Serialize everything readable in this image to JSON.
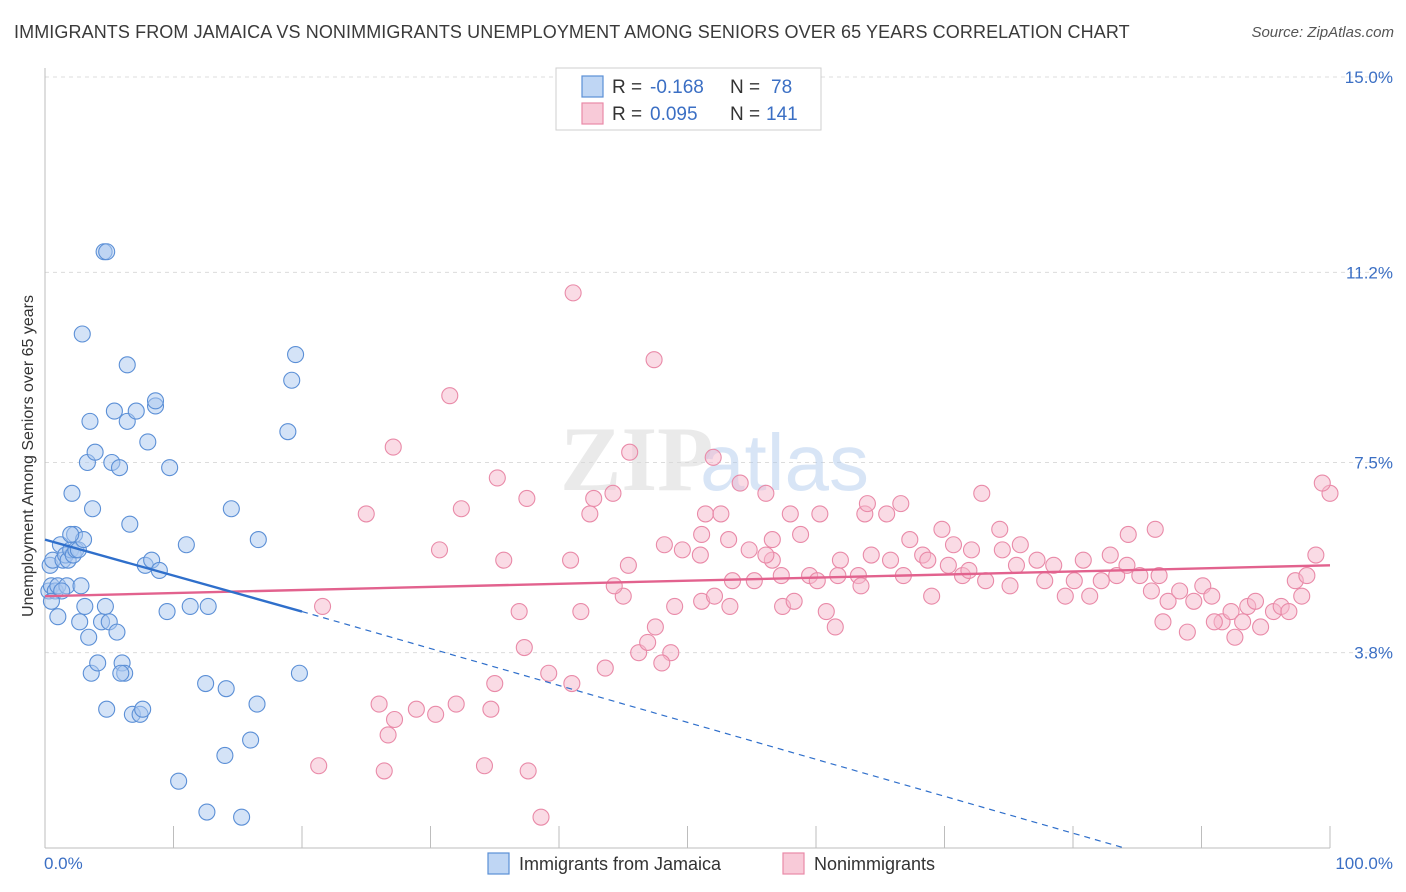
{
  "header": {
    "title": "IMMIGRANTS FROM JAMAICA VS NONIMMIGRANTS UNEMPLOYMENT AMONG SENIORS OVER 65 YEARS CORRELATION CHART",
    "source": "Source: ZipAtlas.com"
  },
  "watermark": {
    "zip": "ZIP",
    "atlas": "atlas"
  },
  "legend": {
    "r_label": "R =",
    "n_label": "N =",
    "rows": [
      {
        "r": "-0.168",
        "n": "78"
      },
      {
        "r": "0.095",
        "n": "141"
      }
    ]
  },
  "bottom_legend": {
    "series1": "Immigrants from Jamaica",
    "series2": "Nonimmigrants"
  },
  "colors": {
    "blue_fill": "#a9c8f0",
    "blue_stroke": "#5b8fd6",
    "blue_line": "#2f6fcb",
    "pink_fill": "#f5b8cb",
    "pink_stroke": "#e98aa8",
    "pink_line": "#e2628e"
  },
  "chart_data": {
    "type": "scatter",
    "title": "IMMIGRANTS FROM JAMAICA VS NONIMMIGRANTS UNEMPLOYMENT AMONG SENIORS OVER 65 YEARS CORRELATION CHART",
    "xlabel": "",
    "ylabel": "Unemployment Among Seniors over 65 years",
    "xlim": [
      0,
      100
    ],
    "ylim": [
      0.0,
      15.0
    ],
    "x_tick_labels": [
      "0.0%",
      "100.0%"
    ],
    "y_ticks": [
      3.8,
      7.5,
      11.2,
      15.0
    ],
    "y_tick_labels": [
      "3.8%",
      "7.5%",
      "11.2%",
      "15.0%"
    ],
    "series": [
      {
        "name": "Immigrants from Jamaica",
        "r": -0.168,
        "n": 78,
        "trend": {
          "x0": 0,
          "y0": 6.0,
          "x1": 20,
          "y1": 4.6,
          "dash_to_x": 84,
          "dash_to_y": 0.0
        },
        "points": [
          [
            0.3,
            5.0
          ],
          [
            0.4,
            5.5
          ],
          [
            0.5,
            5.1
          ],
          [
            0.6,
            5.6
          ],
          [
            0.8,
            5.0
          ],
          [
            1.0,
            5.1
          ],
          [
            1.2,
            5.9
          ],
          [
            1.4,
            5.6
          ],
          [
            1.6,
            5.7
          ],
          [
            1.7,
            5.1
          ],
          [
            1.8,
            5.6
          ],
          [
            2.0,
            5.8
          ],
          [
            2.2,
            5.7
          ],
          [
            2.3,
            6.1
          ],
          [
            2.4,
            5.8
          ],
          [
            2.6,
            5.8
          ],
          [
            2.8,
            5.1
          ],
          [
            3.0,
            6.0
          ],
          [
            2.1,
            6.9
          ],
          [
            3.3,
            7.5
          ],
          [
            3.5,
            8.3
          ],
          [
            3.7,
            6.6
          ],
          [
            3.9,
            7.7
          ],
          [
            2.7,
            4.4
          ],
          [
            3.1,
            4.7
          ],
          [
            3.4,
            4.1
          ],
          [
            3.6,
            3.4
          ],
          [
            4.1,
            3.6
          ],
          [
            4.4,
            4.4
          ],
          [
            4.7,
            4.7
          ],
          [
            4.8,
            2.7
          ],
          [
            5.0,
            4.4
          ],
          [
            5.2,
            7.5
          ],
          [
            5.4,
            8.5
          ],
          [
            5.6,
            4.2
          ],
          [
            5.8,
            7.4
          ],
          [
            6.0,
            3.6
          ],
          [
            6.2,
            3.4
          ],
          [
            6.4,
            8.3
          ],
          [
            6.6,
            6.3
          ],
          [
            6.8,
            2.6
          ],
          [
            7.1,
            8.5
          ],
          [
            7.4,
            2.6
          ],
          [
            7.6,
            2.7
          ],
          [
            7.8,
            5.5
          ],
          [
            8.0,
            7.9
          ],
          [
            8.3,
            5.6
          ],
          [
            8.6,
            8.6
          ],
          [
            8.9,
            5.4
          ],
          [
            9.5,
            4.6
          ],
          [
            9.7,
            7.4
          ],
          [
            10.4,
            1.3
          ],
          [
            11.0,
            5.9
          ],
          [
            11.3,
            4.7
          ],
          [
            12.5,
            3.2
          ],
          [
            12.6,
            0.7
          ],
          [
            12.7,
            4.7
          ],
          [
            14.1,
            3.1
          ],
          [
            14.5,
            6.6
          ],
          [
            14.0,
            1.8
          ],
          [
            15.3,
            0.6
          ],
          [
            16.0,
            2.1
          ],
          [
            16.5,
            2.8
          ],
          [
            16.6,
            6.0
          ],
          [
            18.9,
            8.1
          ],
          [
            19.2,
            9.1
          ],
          [
            19.5,
            9.6
          ],
          [
            19.8,
            3.4
          ],
          [
            4.6,
            11.6
          ],
          [
            4.8,
            11.6
          ],
          [
            2.9,
            10.0
          ],
          [
            6.4,
            9.4
          ],
          [
            8.6,
            8.7
          ],
          [
            2.0,
            6.1
          ],
          [
            1.3,
            5.0
          ],
          [
            0.5,
            4.8
          ],
          [
            1.0,
            4.5
          ],
          [
            5.9,
            3.4
          ]
        ]
      },
      {
        "name": "Nonimmigrants",
        "r": 0.095,
        "n": 141,
        "trend": {
          "x0": 0,
          "y0": 4.9,
          "x1": 100,
          "y1": 5.5
        },
        "points": [
          [
            41.1,
            10.8
          ],
          [
            47.4,
            9.5
          ],
          [
            31.5,
            8.8
          ],
          [
            27.1,
            7.8
          ],
          [
            45.5,
            7.7
          ],
          [
            52.0,
            7.6
          ],
          [
            35.2,
            7.2
          ],
          [
            54.1,
            7.1
          ],
          [
            56.1,
            6.9
          ],
          [
            42.7,
            6.8
          ],
          [
            37.5,
            6.8
          ],
          [
            44.2,
            6.9
          ],
          [
            32.4,
            6.6
          ],
          [
            25.0,
            6.5
          ],
          [
            42.4,
            6.5
          ],
          [
            51.4,
            6.5
          ],
          [
            52.6,
            6.5
          ],
          [
            58.0,
            6.5
          ],
          [
            60.3,
            6.5
          ],
          [
            63.8,
            6.5
          ],
          [
            64.0,
            6.7
          ],
          [
            65.5,
            6.5
          ],
          [
            66.6,
            6.7
          ],
          [
            72.9,
            6.9
          ],
          [
            74.3,
            6.2
          ],
          [
            69.8,
            6.2
          ],
          [
            86.4,
            6.2
          ],
          [
            84.3,
            6.1
          ],
          [
            74.5,
            5.8
          ],
          [
            75.9,
            5.9
          ],
          [
            51.1,
            6.1
          ],
          [
            53.2,
            6.0
          ],
          [
            54.8,
            5.8
          ],
          [
            56.6,
            6.0
          ],
          [
            58.8,
            6.1
          ],
          [
            61.9,
            5.6
          ],
          [
            64.3,
            5.7
          ],
          [
            67.3,
            6.0
          ],
          [
            68.3,
            5.7
          ],
          [
            70.7,
            5.9
          ],
          [
            72.1,
            5.8
          ],
          [
            30.7,
            5.8
          ],
          [
            35.7,
            5.6
          ],
          [
            45.4,
            5.5
          ],
          [
            49.6,
            5.8
          ],
          [
            53.5,
            5.2
          ],
          [
            55.2,
            5.2
          ],
          [
            56.6,
            5.6
          ],
          [
            57.3,
            5.3
          ],
          [
            59.5,
            5.3
          ],
          [
            60.1,
            5.2
          ],
          [
            61.7,
            5.3
          ],
          [
            63.3,
            5.3
          ],
          [
            65.8,
            5.6
          ],
          [
            66.8,
            5.3
          ],
          [
            68.7,
            5.6
          ],
          [
            70.3,
            5.5
          ],
          [
            71.4,
            5.3
          ],
          [
            71.9,
            5.4
          ],
          [
            73.2,
            5.2
          ],
          [
            75.1,
            5.1
          ],
          [
            75.6,
            5.5
          ],
          [
            77.2,
            5.6
          ],
          [
            77.8,
            5.2
          ],
          [
            78.5,
            5.5
          ],
          [
            79.4,
            4.9
          ],
          [
            80.1,
            5.2
          ],
          [
            80.8,
            5.6
          ],
          [
            81.3,
            4.9
          ],
          [
            82.2,
            5.2
          ],
          [
            82.9,
            5.7
          ],
          [
            83.4,
            5.3
          ],
          [
            84.2,
            5.5
          ],
          [
            85.2,
            5.3
          ],
          [
            86.1,
            5.0
          ],
          [
            86.7,
            5.3
          ],
          [
            87.4,
            4.8
          ],
          [
            88.3,
            5.0
          ],
          [
            89.4,
            4.8
          ],
          [
            90.1,
            5.1
          ],
          [
            90.8,
            4.9
          ],
          [
            91.6,
            4.4
          ],
          [
            92.3,
            4.6
          ],
          [
            92.6,
            4.1
          ],
          [
            93.6,
            4.7
          ],
          [
            94.2,
            4.8
          ],
          [
            94.6,
            4.3
          ],
          [
            95.6,
            4.6
          ],
          [
            96.2,
            4.7
          ],
          [
            96.8,
            4.6
          ],
          [
            97.3,
            5.2
          ],
          [
            97.8,
            4.9
          ],
          [
            98.2,
            5.3
          ],
          [
            98.9,
            5.7
          ],
          [
            100.0,
            6.9
          ],
          [
            99.4,
            7.1
          ],
          [
            93.2,
            4.4
          ],
          [
            91.0,
            4.4
          ],
          [
            88.9,
            4.2
          ],
          [
            87.0,
            4.4
          ],
          [
            45.0,
            4.9
          ],
          [
            47.5,
            4.3
          ],
          [
            49.0,
            4.7
          ],
          [
            51.1,
            4.8
          ],
          [
            48.7,
            3.8
          ],
          [
            48.0,
            3.6
          ],
          [
            46.2,
            3.8
          ],
          [
            43.6,
            3.5
          ],
          [
            41.0,
            3.2
          ],
          [
            39.2,
            3.4
          ],
          [
            37.3,
            3.9
          ],
          [
            35.0,
            3.2
          ],
          [
            34.7,
            2.7
          ],
          [
            32.0,
            2.8
          ],
          [
            30.4,
            2.6
          ],
          [
            28.9,
            2.7
          ],
          [
            26.0,
            2.8
          ],
          [
            26.7,
            2.2
          ],
          [
            27.2,
            2.5
          ],
          [
            21.3,
            1.6
          ],
          [
            34.2,
            1.6
          ],
          [
            37.6,
            1.5
          ],
          [
            38.6,
            0.6
          ],
          [
            26.4,
            1.5
          ],
          [
            21.6,
            4.7
          ],
          [
            36.9,
            4.6
          ],
          [
            41.7,
            4.6
          ],
          [
            46.9,
            4.0
          ],
          [
            44.3,
            5.1
          ],
          [
            40.9,
            5.6
          ],
          [
            48.2,
            5.9
          ],
          [
            51.0,
            5.7
          ],
          [
            52.1,
            4.9
          ],
          [
            53.3,
            4.7
          ],
          [
            56.1,
            5.7
          ],
          [
            57.4,
            4.7
          ],
          [
            58.3,
            4.8
          ],
          [
            60.8,
            4.6
          ],
          [
            61.5,
            4.3
          ],
          [
            63.5,
            5.1
          ],
          [
            69.0,
            4.9
          ]
        ]
      }
    ]
  }
}
